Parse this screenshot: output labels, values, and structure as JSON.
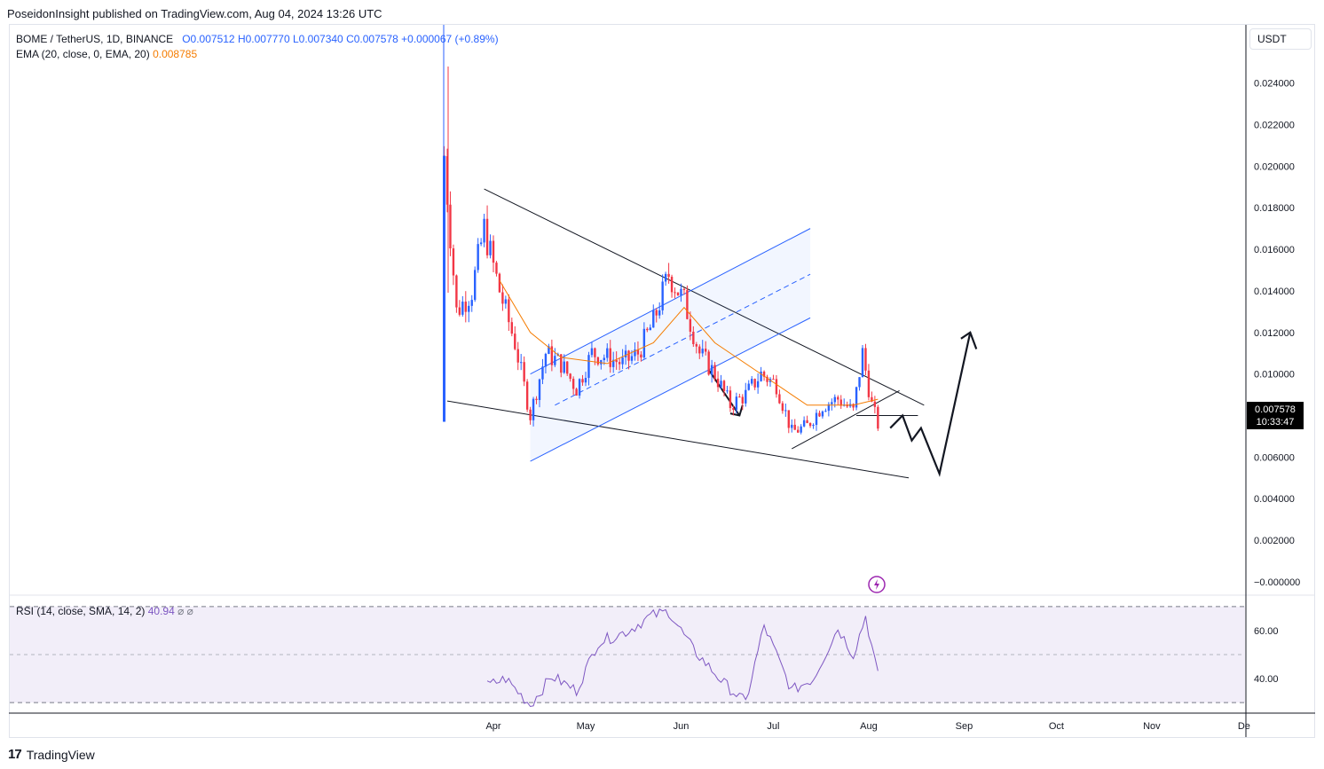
{
  "header": {
    "published": "PoseidonInsight published on TradingView.com, Aug 04, 2024 13:26 UTC"
  },
  "legend": {
    "symbol": "BOME / TetherUS, 1D, BINANCE",
    "open": "O0.007512",
    "high": "H0.007770",
    "low": "L0.007340",
    "close": "C0.007578",
    "change": "+0.000067 (+0.89%)",
    "ema_label": "EMA (20, close, 0, EMA, 20)",
    "ema_value": "0.008785"
  },
  "currency": "USDT",
  "price_tag": {
    "price": "0.007578",
    "countdown": "10:33:47"
  },
  "rsi_legend": {
    "label": "RSI (14, close, SMA, 14, 2)",
    "value": "40.94",
    "extra": "⌀ ⌀"
  },
  "footer": {
    "brand": "TradingView"
  },
  "colors": {
    "up": "#2962ff",
    "down": "#f23645",
    "ema": "#f57c00",
    "rsi": "#7e57c2",
    "channel": "#2962ff"
  },
  "chart_data": [
    {
      "type": "candlestick",
      "symbol": "BOME / TetherUS, 1D, BINANCE",
      "x_ticks": [
        "Apr",
        "May",
        "Jun",
        "Jul",
        "Aug",
        "Sep",
        "Oct",
        "Nov",
        "De"
      ],
      "y_ticks": [
        "0.024000",
        "0.022000",
        "0.020000",
        "0.018000",
        "0.016000",
        "0.014000",
        "0.012000",
        "0.010000",
        "0.008000",
        "0.006000",
        "0.004000",
        "0.002000",
        "−0.000000"
      ],
      "ylim": [
        -0.0006,
        0.0268
      ],
      "annotations": [
        "descending wedge",
        "ascending channel",
        "projected path to ~0.012"
      ],
      "close_series": [
        {
          "date": "2024-03-16",
          "value": 0.0205
        },
        {
          "date": "2024-03-20",
          "value": 0.013
        },
        {
          "date": "2024-03-25",
          "value": 0.014
        },
        {
          "date": "2024-03-29",
          "value": 0.017
        },
        {
          "date": "2024-04-03",
          "value": 0.014
        },
        {
          "date": "2024-04-08",
          "value": 0.0115
        },
        {
          "date": "2024-04-13",
          "value": 0.008
        },
        {
          "date": "2024-04-18",
          "value": 0.011
        },
        {
          "date": "2024-04-23",
          "value": 0.0105
        },
        {
          "date": "2024-04-28",
          "value": 0.0093
        },
        {
          "date": "2024-05-03",
          "value": 0.011
        },
        {
          "date": "2024-05-08",
          "value": 0.0108
        },
        {
          "date": "2024-05-13",
          "value": 0.0105
        },
        {
          "date": "2024-05-18",
          "value": 0.011
        },
        {
          "date": "2024-05-23",
          "value": 0.0125
        },
        {
          "date": "2024-05-28",
          "value": 0.0148
        },
        {
          "date": "2024-06-02",
          "value": 0.0135
        },
        {
          "date": "2024-06-07",
          "value": 0.011
        },
        {
          "date": "2024-06-12",
          "value": 0.01
        },
        {
          "date": "2024-06-17",
          "value": 0.0085
        },
        {
          "date": "2024-06-22",
          "value": 0.009
        },
        {
          "date": "2024-06-27",
          "value": 0.01
        },
        {
          "date": "2024-07-02",
          "value": 0.0095
        },
        {
          "date": "2024-07-07",
          "value": 0.0072
        },
        {
          "date": "2024-07-12",
          "value": 0.0075
        },
        {
          "date": "2024-07-17",
          "value": 0.0085
        },
        {
          "date": "2024-07-22",
          "value": 0.0088
        },
        {
          "date": "2024-07-27",
          "value": 0.0082
        },
        {
          "date": "2024-07-30",
          "value": 0.011
        },
        {
          "date": "2024-08-02",
          "value": 0.0085
        },
        {
          "date": "2024-08-04",
          "value": 0.007578
        }
      ],
      "ema_series": [
        {
          "date": "2024-04-03",
          "value": 0.0145
        },
        {
          "date": "2024-04-13",
          "value": 0.012
        },
        {
          "date": "2024-04-23",
          "value": 0.0108
        },
        {
          "date": "2024-05-08",
          "value": 0.0105
        },
        {
          "date": "2024-05-23",
          "value": 0.0115
        },
        {
          "date": "2024-06-02",
          "value": 0.0132
        },
        {
          "date": "2024-06-12",
          "value": 0.0115
        },
        {
          "date": "2024-06-27",
          "value": 0.01
        },
        {
          "date": "2024-07-12",
          "value": 0.0085
        },
        {
          "date": "2024-07-27",
          "value": 0.0085
        },
        {
          "date": "2024-08-04",
          "value": 0.008785
        }
      ]
    },
    {
      "type": "line",
      "name": "RSI (14, close, SMA, 14, 2)",
      "y_ticks": [
        "60.00",
        "40.00"
      ],
      "band": [
        30,
        70
      ],
      "ylim": [
        26,
        74
      ],
      "last_value": 40.94,
      "series": [
        {
          "date": "2024-03-30",
          "value": 37
        },
        {
          "date": "2024-04-05",
          "value": 40
        },
        {
          "date": "2024-04-13",
          "value": 29
        },
        {
          "date": "2024-04-20",
          "value": 41
        },
        {
          "date": "2024-04-28",
          "value": 35
        },
        {
          "date": "2024-05-05",
          "value": 55
        },
        {
          "date": "2024-05-15",
          "value": 60
        },
        {
          "date": "2024-05-22",
          "value": 66
        },
        {
          "date": "2024-05-28",
          "value": 68
        },
        {
          "date": "2024-06-05",
          "value": 52
        },
        {
          "date": "2024-06-15",
          "value": 38
        },
        {
          "date": "2024-06-22",
          "value": 30
        },
        {
          "date": "2024-06-28",
          "value": 62
        },
        {
          "date": "2024-07-07",
          "value": 35
        },
        {
          "date": "2024-07-14",
          "value": 40
        },
        {
          "date": "2024-07-22",
          "value": 61
        },
        {
          "date": "2024-07-27",
          "value": 50
        },
        {
          "date": "2024-07-31",
          "value": 66
        },
        {
          "date": "2024-08-04",
          "value": 40.94
        }
      ]
    }
  ]
}
